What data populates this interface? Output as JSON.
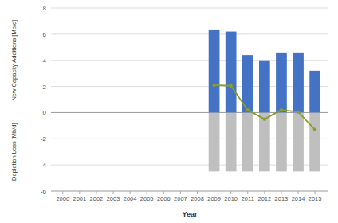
{
  "chart_data": {
    "type": "bar",
    "xlabel": "Year",
    "ylabel_top": "New Capacity Additions [Mb/d]",
    "ylabel_bottom": "Depletion Loss [Mb/d]",
    "x": [
      2009,
      2010,
      2011,
      2012,
      2013,
      2014,
      2015
    ],
    "series": [
      {
        "type": "bar",
        "color": "#BFBFBF",
        "values": [
          -4.5,
          -4.5,
          -4.5,
          -4.5,
          -4.5,
          -4.5,
          -4.5
        ]
      },
      {
        "type": "bar",
        "color": "#4472C4",
        "values": [
          6.3,
          6.2,
          4.4,
          4.0,
          4.6,
          4.6,
          3.2
        ]
      },
      {
        "type": "line",
        "color": "#8B9E2A",
        "marker": "circle",
        "values": [
          2.1,
          2.05,
          0.2,
          -0.5,
          0.2,
          0.05,
          -1.3
        ]
      }
    ],
    "xlim": [
      1999.3,
      2015.8
    ],
    "xticks": [
      2000,
      2001,
      2002,
      2003,
      2004,
      2005,
      2006,
      2007,
      2008,
      2009,
      2010,
      2011,
      2012,
      2013,
      2014,
      2015
    ],
    "ylim": [
      -6,
      8
    ],
    "yticks": [
      -6,
      -4,
      -2,
      0,
      2,
      4,
      6,
      8
    ],
    "grid": true
  }
}
